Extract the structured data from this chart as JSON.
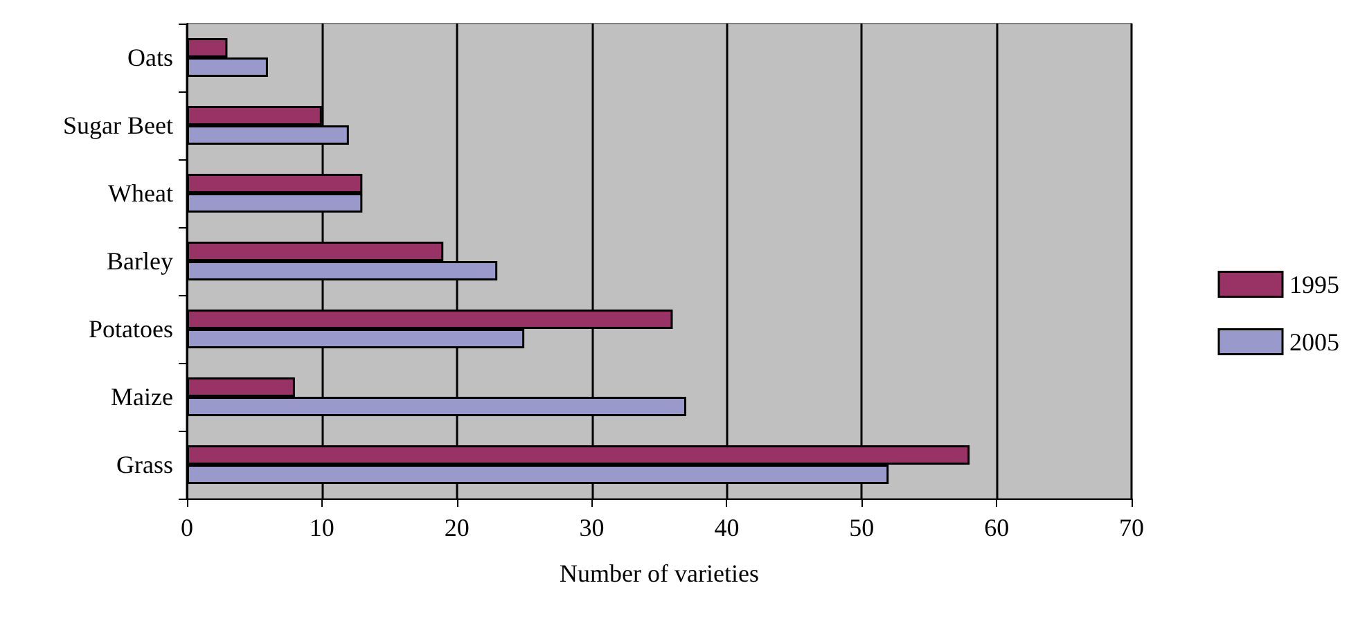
{
  "chart_data": {
    "type": "bar",
    "orientation": "horizontal",
    "xlabel": "Number of varieties",
    "categories": [
      "Oats",
      "Sugar Beet",
      "Wheat",
      "Barley",
      "Potatoes",
      "Maize",
      "Grass"
    ],
    "series": [
      {
        "name": "1995",
        "color": "#993366",
        "values": [
          3,
          10,
          13,
          19,
          36,
          8,
          58
        ]
      },
      {
        "name": "2005",
        "color": "#9999cc",
        "values": [
          6,
          12,
          13,
          23,
          25,
          37,
          52
        ]
      }
    ],
    "xlim": [
      0,
      70
    ],
    "xticks": [
      0,
      10,
      20,
      30,
      40,
      50,
      60,
      70
    ],
    "grid": "x",
    "legend": "right"
  }
}
